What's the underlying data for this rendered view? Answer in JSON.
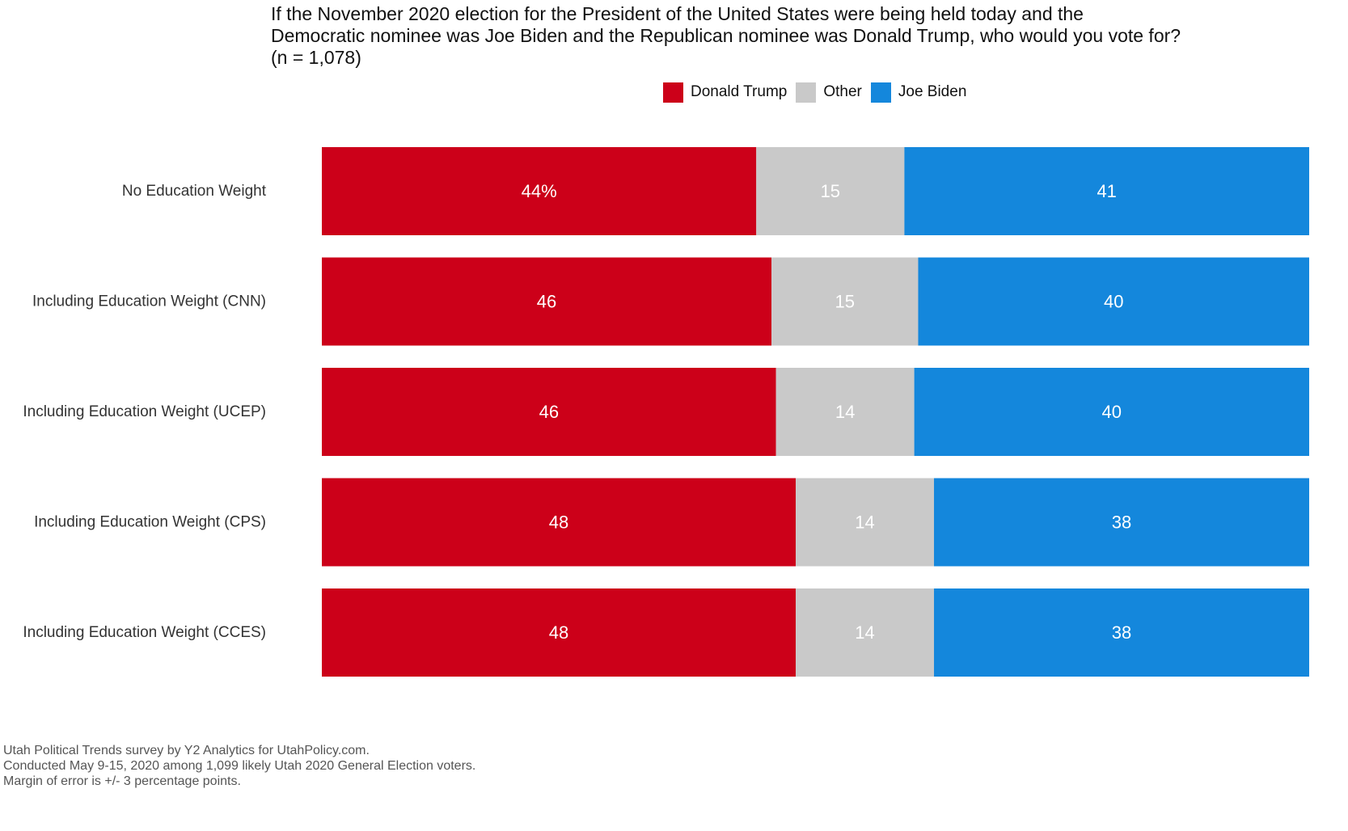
{
  "title_lines": [
    "If the November 2020 election for the President of the United States were being held today and the",
    "Democratic nominee was Joe Biden and the Republican nominee was Donald Trump, who would you vote for?",
    "(n = 1,078)"
  ],
  "notes": [
    "Utah Political Trends survey by Y2 Analytics for UtahPolicy.com.",
    "Conducted May 9-15, 2020 among 1,099 likely Utah 2020 General Election voters.",
    "Margin of error is +/- 3 percentage points."
  ],
  "chart_data": {
    "type": "bar",
    "orientation": "horizontal",
    "stacked": true,
    "percent_scale": true,
    "grid": false,
    "legend_position": "top",
    "categories": [
      "No Education Weight",
      "Including Education Weight (CNN)",
      "Including Education Weight (UCEP)",
      "Including Education Weight (CPS)",
      "Including Education Weight (CCES)"
    ],
    "series": [
      {
        "name": "Donald Trump",
        "color": "#CC0019",
        "values": [
          44,
          46,
          46,
          48,
          48
        ]
      },
      {
        "name": "Other",
        "color": "#C9C9C9",
        "values": [
          15,
          15,
          14,
          14,
          14
        ]
      },
      {
        "name": "Joe Biden",
        "color": "#1487DC",
        "values": [
          41,
          40,
          40,
          38,
          38
        ]
      }
    ],
    "data_labels": [
      [
        "44%",
        "15",
        "41"
      ],
      [
        "46",
        "15",
        "40"
      ],
      [
        "46",
        "14",
        "40"
      ],
      [
        "48",
        "14",
        "38"
      ],
      [
        "48",
        "14",
        "38"
      ]
    ]
  }
}
